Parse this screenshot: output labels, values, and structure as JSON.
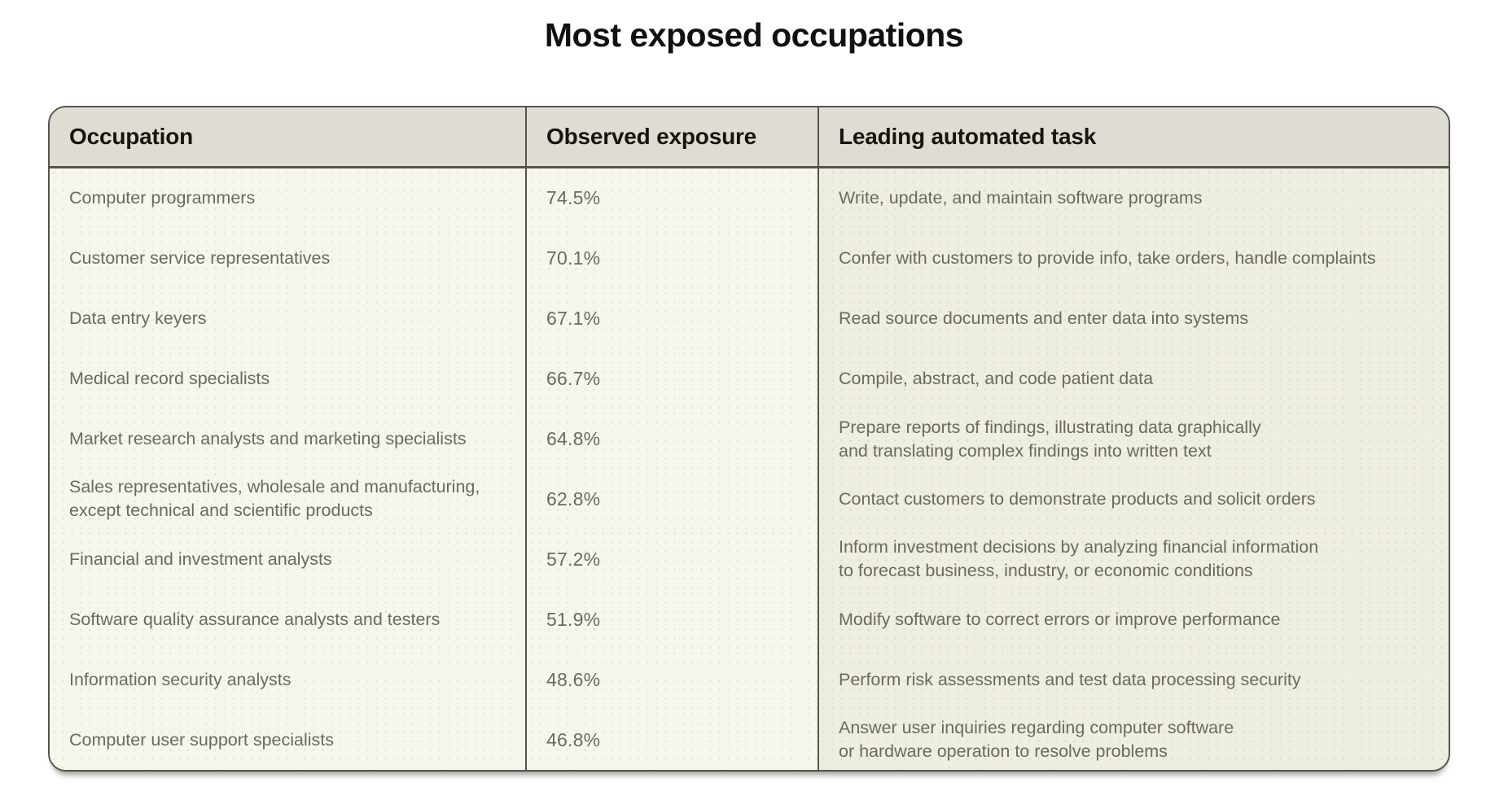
{
  "title": "Most exposed occupations",
  "chart_data": {
    "type": "table",
    "title": "Most exposed occupations",
    "columns": [
      "Occupation",
      "Observed exposure",
      "Leading automated task"
    ],
    "rows": [
      {
        "occupation": "Computer programmers",
        "exposure": "74.5%",
        "exposure_value": 74.5,
        "task": "Write, update, and maintain software programs"
      },
      {
        "occupation": "Customer service representatives",
        "exposure": "70.1%",
        "exposure_value": 70.1,
        "task": "Confer with customers to provide info, take orders, handle complaints"
      },
      {
        "occupation": "Data entry keyers",
        "exposure": "67.1%",
        "exposure_value": 67.1,
        "task": "Read source documents and enter data into systems"
      },
      {
        "occupation": "Medical record specialists",
        "exposure": "66.7%",
        "exposure_value": 66.7,
        "task": "Compile, abstract, and code patient data"
      },
      {
        "occupation": "Market research analysts and marketing specialists",
        "exposure": "64.8%",
        "exposure_value": 64.8,
        "task": "Prepare reports of findings, illustrating data graphically\nand translating complex findings into written text"
      },
      {
        "occupation": "Sales representatives, wholesale and manufacturing,\nexcept technical and scientific products",
        "exposure": "62.8%",
        "exposure_value": 62.8,
        "task": "Contact customers to demonstrate products and solicit orders"
      },
      {
        "occupation": "Financial and investment analysts",
        "exposure": "57.2%",
        "exposure_value": 57.2,
        "task": "Inform investment decisions by analyzing financial information\nto forecast business, industry, or economic conditions"
      },
      {
        "occupation": "Software quality assurance analysts and testers",
        "exposure": "51.9%",
        "exposure_value": 51.9,
        "task": "Modify software to correct errors or improve performance"
      },
      {
        "occupation": "Information security analysts",
        "exposure": "48.6%",
        "exposure_value": 48.6,
        "task": "Perform risk assessments and test data processing security"
      },
      {
        "occupation": "Computer user support specialists",
        "exposure": "46.8%",
        "exposure_value": 46.8,
        "task": "Answer user inquiries regarding computer software\nor hardware operation to resolve problems"
      }
    ],
    "layout": {
      "header_bg": "#dedcd3",
      "cell_bg": "#f7f6ed",
      "task_col_bg": "#efeee2",
      "border_color": "#55544b",
      "body_text_color": "#6b6a5f",
      "header_text_color": "#16160f"
    }
  }
}
